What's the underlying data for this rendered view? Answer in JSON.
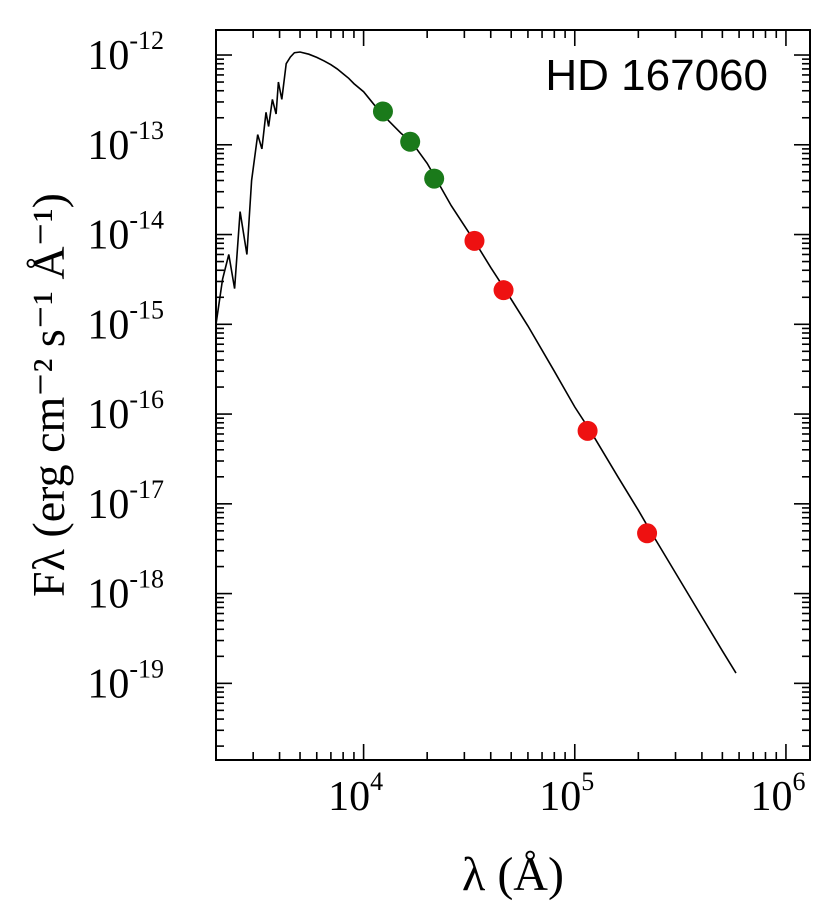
{
  "chart_data": {
    "type": "scatter",
    "annotation": "HD 167060",
    "xlabel": "λ (Å)",
    "ylabel": "Fλ (erg cm⁻² s⁻¹ Å⁻¹)",
    "x_scale": "log",
    "y_scale": "log",
    "xlim": [
      2000,
      1300000
    ],
    "ylim": [
      1.4e-20,
      1.9e-12
    ],
    "x_ticks": [
      {
        "value": 10000,
        "base": "10",
        "exp": "4"
      },
      {
        "value": 100000,
        "base": "10",
        "exp": "5"
      },
      {
        "value": 1000000,
        "base": "10",
        "exp": "6"
      }
    ],
    "y_ticks": [
      {
        "value": 1e-12,
        "base": "10",
        "exp": "-12"
      },
      {
        "value": 1e-13,
        "base": "10",
        "exp": "-13"
      },
      {
        "value": 1e-14,
        "base": "10",
        "exp": "-14"
      },
      {
        "value": 1e-15,
        "base": "10",
        "exp": "-15"
      },
      {
        "value": 1e-16,
        "base": "10",
        "exp": "-16"
      },
      {
        "value": 1e-17,
        "base": "10",
        "exp": "-17"
      },
      {
        "value": 1e-18,
        "base": "10",
        "exp": "-18"
      },
      {
        "value": 1e-19,
        "base": "10",
        "exp": "-19"
      }
    ],
    "series": [
      {
        "kind": "line",
        "color": "#000000",
        "points": [
          [
            2000,
            1e-15
          ],
          [
            2150,
            3.2e-15
          ],
          [
            2300,
            6e-15
          ],
          [
            2450,
            2.5e-15
          ],
          [
            2600,
            1.8e-14
          ],
          [
            2800,
            6e-15
          ],
          [
            2950,
            4e-14
          ],
          [
            3150,
            1.3e-13
          ],
          [
            3300,
            9e-14
          ],
          [
            3450,
            2.3e-13
          ],
          [
            3550,
            1.6e-13
          ],
          [
            3700,
            3.2e-13
          ],
          [
            3850,
            2.2e-13
          ],
          [
            3950,
            5e-13
          ],
          [
            4100,
            3.2e-13
          ],
          [
            4300,
            8e-13
          ],
          [
            4500,
            9.5e-13
          ],
          [
            4700,
            1.06e-12
          ],
          [
            5000,
            1.08e-12
          ],
          [
            5500,
            1.02e-12
          ],
          [
            6000,
            9.4e-13
          ],
          [
            6500,
            8.6e-13
          ],
          [
            7000,
            7.8e-13
          ],
          [
            7500,
            7e-13
          ],
          [
            8000,
            6.2e-13
          ],
          [
            8500,
            5.5e-13
          ],
          [
            9000,
            4.8e-13
          ],
          [
            10000,
            3.9e-13
          ],
          [
            12000,
            2.3e-13
          ],
          [
            15000,
            1.35e-13
          ],
          [
            17000,
            1.05e-13
          ],
          [
            20000,
            6.2e-14
          ],
          [
            22000,
            4.2e-14
          ],
          [
            26000,
            2.1e-14
          ],
          [
            34000,
            8e-15
          ],
          [
            40000,
            4.3e-15
          ],
          [
            47000,
            2.4e-15
          ],
          [
            60000,
            9.6e-16
          ],
          [
            80000,
            3e-16
          ],
          [
            100000,
            1.2e-16
          ],
          [
            120000,
            6.2e-17
          ],
          [
            160000,
            2e-17
          ],
          [
            200000,
            8.5e-18
          ],
          [
            230000,
            4.8e-18
          ],
          [
            300000,
            1.7e-18
          ],
          [
            400000,
            5.5e-19
          ],
          [
            500000,
            2.3e-19
          ],
          [
            580000,
            1.3e-19
          ]
        ]
      },
      {
        "kind": "points",
        "color": "#1a7a1a",
        "x": [
          12350,
          16620,
          21590
        ],
        "y": [
          2.35e-13,
          1.08e-13,
          4.2e-14
        ]
      },
      {
        "kind": "points",
        "color": "#ee1111",
        "x": [
          33500,
          46000,
          115000,
          220000
        ],
        "y": [
          8.5e-15,
          2.4e-15,
          6.5e-17,
          4.7e-18
        ]
      }
    ]
  }
}
